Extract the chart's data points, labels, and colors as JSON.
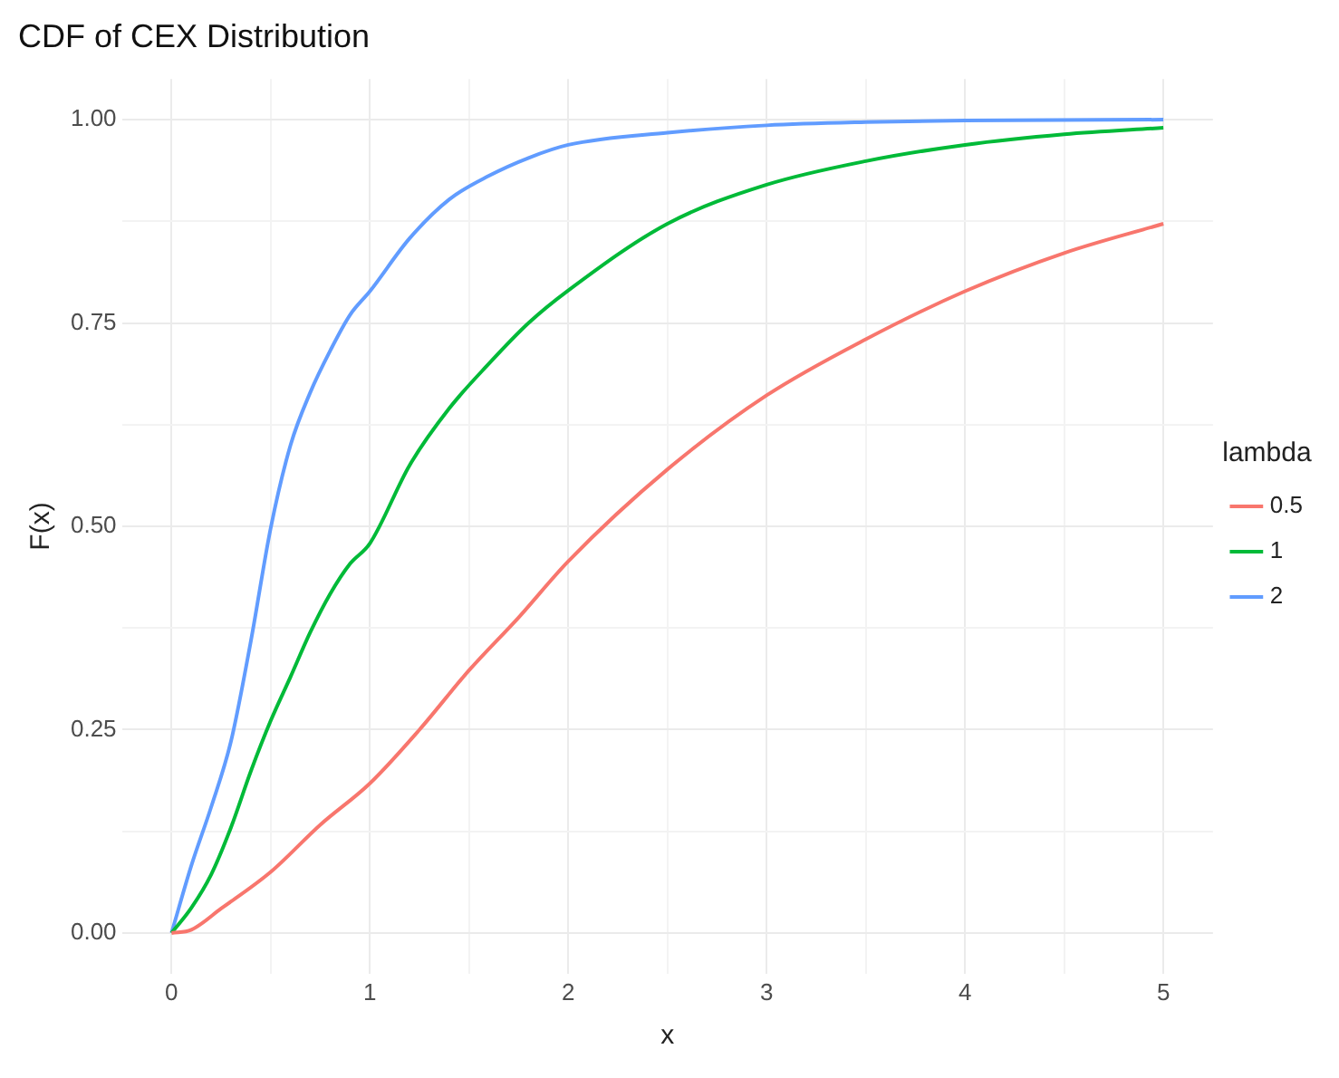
{
  "chart_data": {
    "type": "line",
    "title": "CDF of CEX Distribution",
    "xlabel": "x",
    "ylabel": "F(x)",
    "legend_title": "lambda",
    "legend": "right",
    "grid": true,
    "marker": "none",
    "line_style": "solid",
    "xlim": [
      -0.25,
      5.25
    ],
    "ylim": [
      -0.05,
      1.05
    ],
    "xticks": [
      0,
      {
        "value": 0.5,
        "label": null
      },
      1,
      {
        "value": 1.5,
        "label": null
      },
      2,
      {
        "value": 2.5,
        "label": null
      },
      3,
      {
        "value": 3.5,
        "label": null
      },
      4,
      {
        "value": 4.5,
        "label": null
      },
      5
    ],
    "yticks": [
      {
        "value": 0,
        "label": "0.00"
      },
      {
        "value": 0.125,
        "label": null
      },
      {
        "value": 0.25,
        "label": "0.25"
      },
      {
        "value": 0.375,
        "label": null
      },
      {
        "value": 0.5,
        "label": "0.50"
      },
      {
        "value": 0.625,
        "label": null
      },
      {
        "value": 0.75,
        "label": "0.75"
      },
      {
        "value": 0.875,
        "label": null
      },
      {
        "value": 1,
        "label": "1.00"
      }
    ],
    "series": [
      {
        "name": "0.5",
        "color": "#f8766d",
        "x": [
          0,
          0.1,
          0.25,
          0.5,
          0.75,
          1,
          1.25,
          1.5,
          1.75,
          2,
          2.5,
          3,
          3.5,
          4,
          4.5,
          5
        ],
        "values": [
          0,
          0.004,
          0.03,
          0.075,
          0.133,
          0.184,
          0.25,
          0.323,
          0.388,
          0.457,
          0.57,
          0.661,
          0.73,
          0.789,
          0.836,
          0.872
        ]
      },
      {
        "name": "1",
        "color": "#00ba38",
        "x": [
          0,
          0.1,
          0.2,
          0.3,
          0.4,
          0.5,
          0.6,
          0.7,
          0.8,
          0.9,
          1,
          1.2,
          1.4,
          1.6,
          1.8,
          2,
          2.5,
          3,
          3.5,
          4,
          4.5,
          5
        ],
        "values": [
          0,
          0.031,
          0.072,
          0.13,
          0.199,
          0.261,
          0.315,
          0.37,
          0.417,
          0.454,
          0.479,
          0.575,
          0.645,
          0.7,
          0.75,
          0.79,
          0.872,
          0.92,
          0.949,
          0.969,
          0.982,
          0.99
        ]
      },
      {
        "name": "2",
        "color": "#619cff",
        "x": [
          0,
          0.1,
          0.2,
          0.3,
          0.4,
          0.5,
          0.6,
          0.7,
          0.8,
          0.9,
          1,
          1.2,
          1.4,
          1.6,
          1.8,
          2,
          2.5,
          3,
          3.5,
          4,
          5
        ],
        "values": [
          0,
          0.083,
          0.155,
          0.236,
          0.359,
          0.498,
          0.6,
          0.665,
          0.716,
          0.76,
          0.789,
          0.854,
          0.902,
          0.931,
          0.953,
          0.969,
          0.984,
          0.993,
          0.997,
          0.999,
          1
        ]
      }
    ]
  }
}
